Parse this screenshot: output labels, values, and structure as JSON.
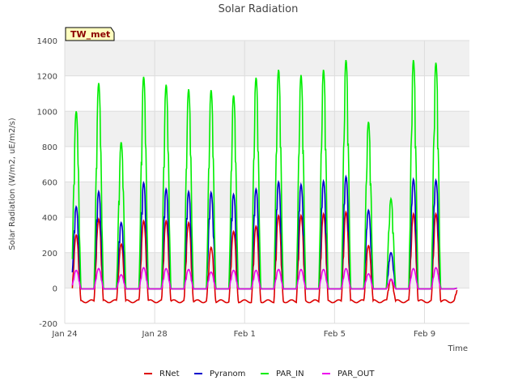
{
  "chart_data": {
    "type": "line",
    "title": "Solar Radiation",
    "xlabel": "Time",
    "ylabel": "Solar Radiation (W/m2, uE/m2/s)",
    "tag": "TW_met",
    "ylim": [
      -200,
      1400
    ],
    "yticks": [
      -200,
      0,
      200,
      400,
      600,
      800,
      1000,
      1200,
      1400
    ],
    "xlim": [
      "2023-01-24",
      "2023-02-11"
    ],
    "xticks": [
      {
        "label": "Jan 24",
        "date": "2023-01-24"
      },
      {
        "label": "Jan 28",
        "date": "2023-01-28"
      },
      {
        "label": "Feb 1",
        "date": "2023-02-01"
      },
      {
        "label": "Feb 5",
        "date": "2023-02-05"
      },
      {
        "label": "Feb 9",
        "date": "2023-02-09"
      }
    ],
    "grid": true,
    "legend_position": "bottom",
    "day_noon_dates": [
      "2023-01-24",
      "2023-01-25",
      "2023-01-26",
      "2023-01-27",
      "2023-01-28",
      "2023-01-29",
      "2023-01-30",
      "2023-01-31",
      "2023-02-01",
      "2023-02-02",
      "2023-02-03",
      "2023-02-04",
      "2023-02-05",
      "2023-02-06",
      "2023-02-07",
      "2023-02-08",
      "2023-02-09",
      "2023-02-10"
    ],
    "series": [
      {
        "name": "RNet",
        "color": "#dd0000",
        "night_value": -75,
        "daily_peak": [
          300,
          390,
          250,
          380,
          380,
          370,
          230,
          320,
          350,
          410,
          410,
          420,
          430,
          240,
          50,
          420,
          420,
          0
        ]
      },
      {
        "name": "Pyranom",
        "color": "#0000cc",
        "night_value": -5,
        "daily_peak": [
          460,
          545,
          370,
          595,
          560,
          545,
          540,
          530,
          560,
          600,
          585,
          605,
          630,
          440,
          200,
          615,
          610,
          0
        ]
      },
      {
        "name": "PAR_IN",
        "color": "#00ee00",
        "night_value": -5,
        "daily_peak": [
          1000,
          1160,
          825,
          1195,
          1150,
          1125,
          1120,
          1090,
          1190,
          1235,
          1205,
          1235,
          1290,
          940,
          505,
          1290,
          1275,
          0
        ]
      },
      {
        "name": "PAR_OUT",
        "color": "#ee00ee",
        "night_value": -5,
        "daily_peak": [
          100,
          110,
          75,
          115,
          110,
          105,
          90,
          100,
          100,
          105,
          105,
          105,
          110,
          80,
          50,
          110,
          115,
          0
        ]
      }
    ]
  }
}
